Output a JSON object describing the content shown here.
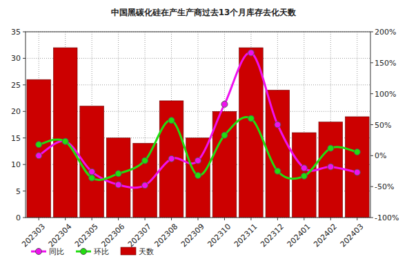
{
  "chart_data": {
    "type": "bar",
    "title": "中国黑碳化硅在产生产商过去13个月库存去化天数",
    "categories": [
      "202303",
      "202304",
      "202305",
      "202306",
      "202307",
      "202308",
      "202309",
      "202310",
      "202311",
      "202312",
      "202401",
      "202402",
      "202403"
    ],
    "series": [
      {
        "name": "同比",
        "type": "line",
        "axis": "y2",
        "color": "#ee11ee",
        "marker": "circle",
        "line_style": "smooth",
        "values": [
          0,
          23,
          -26,
          -47,
          -48,
          -5,
          -8,
          83,
          166,
          50,
          -20,
          -18,
          -27
        ]
      },
      {
        "name": "环比",
        "type": "line",
        "axis": "y2",
        "color": "#22dd11",
        "marker": "circle",
        "line_style": "smooth",
        "values": [
          18,
          23,
          -36,
          -29,
          -8,
          57,
          -32,
          33,
          60,
          -25,
          -33,
          12,
          6
        ]
      },
      {
        "name": "天数",
        "type": "bar",
        "color": "#cc0000",
        "values": [
          26,
          32,
          21,
          15,
          14,
          22,
          15,
          20,
          32,
          24,
          16,
          18,
          19
        ]
      }
    ],
    "ylim": [
      0,
      35
    ],
    "yticks": [
      0,
      5,
      10,
      15,
      20,
      25,
      30,
      35
    ],
    "y2lim": [
      -100,
      200
    ],
    "y2ticks": [
      {
        "value": -100,
        "label": "-100%"
      },
      {
        "value": -50,
        "label": "-50%"
      },
      {
        "value": 0,
        "label": "0%"
      },
      {
        "value": 50,
        "label": "50%"
      },
      {
        "value": 100,
        "label": "100%"
      },
      {
        "value": 150,
        "label": "150%"
      },
      {
        "value": 200,
        "label": "200%"
      }
    ],
    "grid": true,
    "legend": "bottom"
  }
}
